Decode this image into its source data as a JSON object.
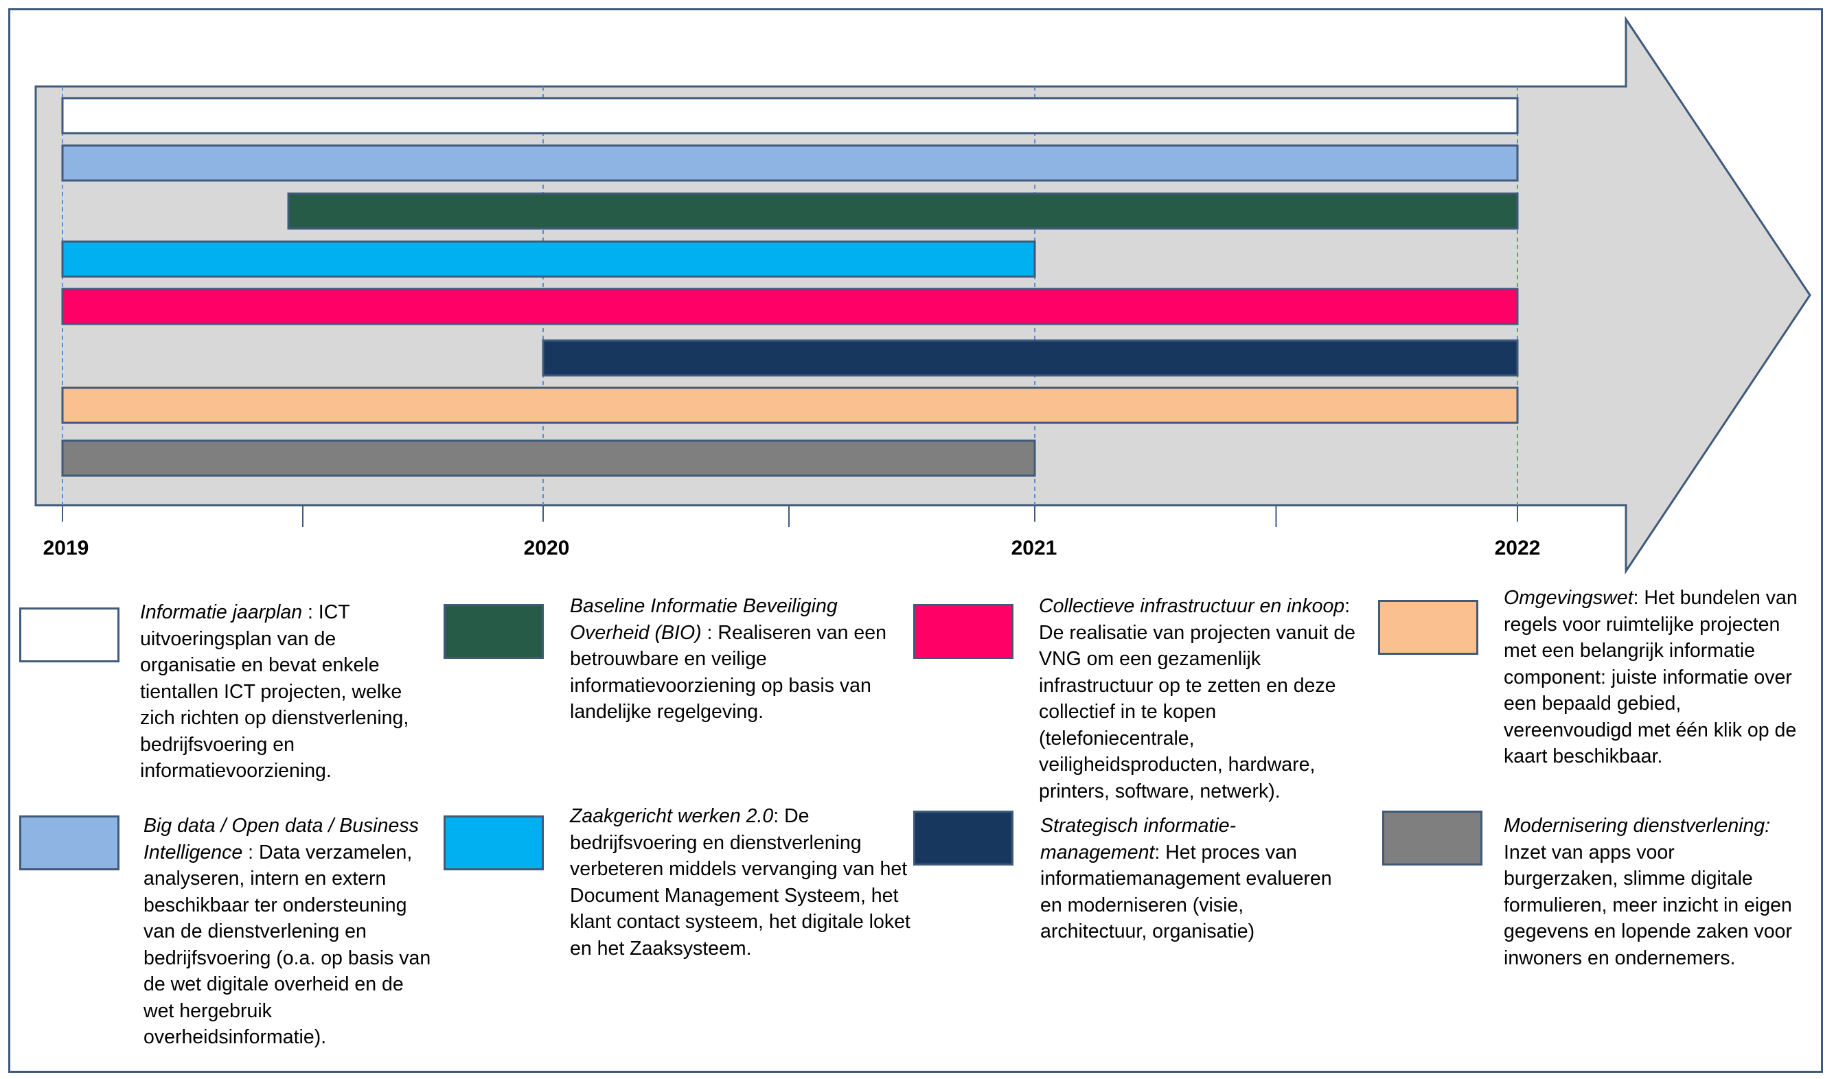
{
  "timeline": {
    "years": [
      "2019",
      "2020",
      "2021",
      "2022"
    ],
    "arrow_fill": "#d9d8d9",
    "outline_color": "#3f5a7a",
    "bars": [
      {
        "id": "informatie-jaarplan",
        "start": 2019.0,
        "end": 2022.0,
        "color": "#ffffff"
      },
      {
        "id": "big-data",
        "start": 2019.0,
        "end": 2022.0,
        "color": "#8eb4e3"
      },
      {
        "id": "bio",
        "start": 2019.47,
        "end": 2022.0,
        "color": "#265c47"
      },
      {
        "id": "zaakgericht-werken",
        "start": 2019.0,
        "end": 2021.0,
        "color": "#00b0f0"
      },
      {
        "id": "collectieve-infrastructuur",
        "start": 2019.0,
        "end": 2022.0,
        "color": "#ff0066"
      },
      {
        "id": "strategisch-informatiemanagement",
        "start": 2020.0,
        "end": 2022.0,
        "color": "#17375e"
      },
      {
        "id": "omgevingswet",
        "start": 2019.0,
        "end": 2022.0,
        "color": "#fac090"
      },
      {
        "id": "modernisering-dienstverlening",
        "start": 2019.0,
        "end": 2021.0,
        "color": "#7f7f7f"
      }
    ]
  },
  "legend": [
    {
      "id": "informatie-jaarplan",
      "color": "#ffffff",
      "term": "Informatie jaarplan",
      "text": " : ICT uitvoeringsplan van de organisatie en bevat enkele tientallen ICT projecten, welke zich richten op dienstverlening, bedrijfsvoering en informatievoorziening."
    },
    {
      "id": "bio",
      "color": "#265c47",
      "term": "Baseline Informatie Beveiliging Overheid (BIO)",
      "text": " : Realiseren van een betrouwbare en veilige informatievoorziening op basis van landelijke regelgeving."
    },
    {
      "id": "collectieve-infrastructuur",
      "color": "#ff0066",
      "term": "Collectieve infrastructuur en inkoop",
      "text": ": De realisatie van projecten vanuit de VNG om een gezamenlijk infrastructuur op te zetten en deze collectief in te kopen (telefoniecentrale, veiligheidsproducten, hardware, printers, software, netwerk)."
    },
    {
      "id": "omgevingswet",
      "color": "#fac090",
      "term": "Omgevingswet",
      "text": ": Het bundelen van regels voor ruimtelijke projecten met een belangrijk informatie component: juiste informatie over een bepaald gebied, vereenvoudigd met één klik op de kaart beschikbaar."
    },
    {
      "id": "big-data",
      "color": "#8eb4e3",
      "term": "Big data / Open  data / Business Intelligence",
      "text": " : Data verzamelen, analyseren, intern en extern beschikbaar ter ondersteuning van de dienstverlening en bedrijfsvoering (o.a. op basis van de wet digitale overheid en de wet hergebruik overheidsinformatie)."
    },
    {
      "id": "zaakgericht-werken",
      "color": "#00b0f0",
      "term": "Zaakgericht werken 2.0",
      "text": ": De bedrijfsvoering en dienstverlening verbeteren middels vervanging van het Document Management Systeem, het klant contact systeem, het digitale loket en het Zaaksysteem."
    },
    {
      "id": "strategisch-informatiemanagement",
      "color": "#17375e",
      "term": "Strategisch informatie-management",
      "text": ": Het proces van informatiemanagement evalueren en moderniseren (visie, architectuur, organisatie)"
    },
    {
      "id": "modernisering-dienstverlening",
      "color": "#7f7f7f",
      "term": "Modernisering dienstverlening:",
      "text": " Inzet van apps voor burgerzaken, slimme digitale formulieren, meer inzicht in eigen gegevens en lopende zaken voor inwoners en ondernemers."
    }
  ]
}
